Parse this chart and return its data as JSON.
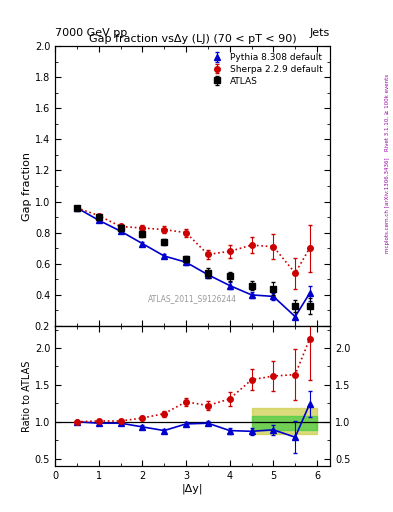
{
  "title": "Gap fraction vsΔy (LJ) (70 < pT < 90)",
  "header_left": "7000 GeV pp",
  "header_right": "Jets",
  "watermark": "ATLAS_2011_S9126244",
  "xlabel": "|Δy|",
  "ylabel_main": "Gap fraction",
  "ylabel_ratio": "Ratio to ATLAS",
  "right_label": "Rivet 3.1.10, ≥ 100k events",
  "arxiv_label": "[arXiv:1306.3436]",
  "mcplots_label": "mcplots.cern.ch",
  "atlas_x": [
    0.5,
    1.0,
    1.5,
    2.0,
    2.5,
    3.0,
    3.5,
    4.0,
    4.5,
    5.0,
    5.5,
    5.83
  ],
  "atlas_y": [
    0.96,
    0.9,
    0.83,
    0.79,
    0.74,
    0.63,
    0.54,
    0.52,
    0.46,
    0.44,
    0.33,
    0.33
  ],
  "atlas_yerr": [
    0.01,
    0.01,
    0.02,
    0.02,
    0.02,
    0.02,
    0.03,
    0.03,
    0.03,
    0.04,
    0.04,
    0.05
  ],
  "pythia_x": [
    0.5,
    1.0,
    1.5,
    2.0,
    2.5,
    3.0,
    3.5,
    4.0,
    4.5,
    5.0,
    5.5,
    5.83
  ],
  "pythia_y": [
    0.96,
    0.88,
    0.81,
    0.73,
    0.65,
    0.61,
    0.53,
    0.46,
    0.4,
    0.39,
    0.26,
    0.41
  ],
  "pythia_yerr": [
    0.005,
    0.008,
    0.01,
    0.01,
    0.015,
    0.015,
    0.015,
    0.02,
    0.02,
    0.025,
    0.07,
    0.05
  ],
  "sherpa_x": [
    0.5,
    1.0,
    1.5,
    2.0,
    2.5,
    3.0,
    3.5,
    4.0,
    4.5,
    5.0,
    5.5,
    5.83
  ],
  "sherpa_y": [
    0.96,
    0.91,
    0.84,
    0.83,
    0.82,
    0.8,
    0.66,
    0.68,
    0.72,
    0.71,
    0.54,
    0.7
  ],
  "sherpa_yerr": [
    0.005,
    0.01,
    0.01,
    0.02,
    0.02,
    0.025,
    0.03,
    0.04,
    0.05,
    0.08,
    0.1,
    0.15
  ],
  "ratio_pythia_x": [
    0.5,
    1.0,
    1.5,
    2.0,
    2.5,
    3.0,
    3.5,
    4.0,
    4.5,
    5.0,
    5.5,
    5.83
  ],
  "ratio_pythia_y": [
    1.0,
    0.98,
    0.98,
    0.93,
    0.88,
    0.97,
    0.98,
    0.88,
    0.87,
    0.89,
    0.79,
    1.24
  ],
  "ratio_pythia_yerr": [
    0.01,
    0.01,
    0.015,
    0.02,
    0.025,
    0.025,
    0.03,
    0.04,
    0.05,
    0.07,
    0.22,
    0.18
  ],
  "ratio_sherpa_x": [
    0.5,
    1.0,
    1.5,
    2.0,
    2.5,
    3.0,
    3.5,
    4.0,
    4.5,
    5.0,
    5.5,
    5.83
  ],
  "ratio_sherpa_y": [
    1.0,
    1.01,
    1.01,
    1.05,
    1.11,
    1.27,
    1.22,
    1.31,
    1.57,
    1.62,
    1.64,
    2.12
  ],
  "ratio_sherpa_yerr": [
    0.01,
    0.015,
    0.02,
    0.03,
    0.04,
    0.05,
    0.06,
    0.09,
    0.14,
    0.2,
    0.35,
    0.55
  ],
  "green_band_xlo": 4.5,
  "green_band_xhi": 6.0,
  "green_band_lo": 0.89,
  "green_band_hi": 1.08,
  "green_band_lo2": 0.83,
  "green_band_hi2": 1.18,
  "main_ylim": [
    0.2,
    2.0
  ],
  "main_yticks": [
    0.2,
    0.4,
    0.6,
    0.8,
    1.0,
    1.2,
    1.4,
    1.6,
    1.8,
    2.0
  ],
  "ratio_ylim": [
    0.4,
    2.3
  ],
  "ratio_yticks": [
    0.5,
    1.0,
    1.5,
    2.0
  ],
  "xlim": [
    0.0,
    6.3
  ],
  "xticks": [
    0,
    1,
    2,
    3,
    4,
    5,
    6
  ],
  "atlas_color": "#000000",
  "pythia_color": "#0000cc",
  "sherpa_color": "#cc0000",
  "green_color": "#44cc44",
  "yellow_color": "#cccc44"
}
